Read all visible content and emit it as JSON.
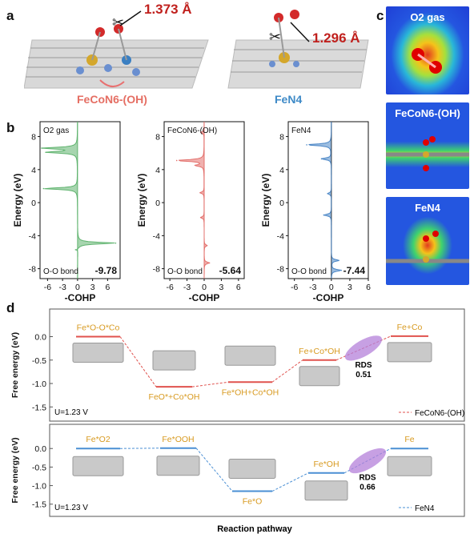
{
  "panels": {
    "a": "a",
    "b": "b",
    "c": "c",
    "d": "d"
  },
  "panel_a": {
    "bond_left": "1.373 Å",
    "bond_right": "1.296 Å",
    "name_left": "FeCoN6-(OH)",
    "name_right": "FeN4"
  },
  "panel_c": {
    "labels": [
      "O2 gas",
      "FeCoN6-(OH)",
      "FeN4"
    ]
  },
  "chart_data": [
    {
      "type": "line",
      "title": "O2 gas",
      "xlabel": "-COHP",
      "ylabel": "Energy (eV)",
      "xlim": [
        -7.5,
        8.5
      ],
      "ylim": [
        -9.2,
        9.8
      ],
      "xticks": [
        "-6",
        "-3",
        "0",
        "3",
        "6"
      ],
      "yticks": [
        "8",
        "4",
        "0",
        "-4",
        "-8"
      ],
      "bond_label": "O-O bond",
      "icohp": "-9.78",
      "color": "#5fb36e",
      "peaks": [
        {
          "energy": 6.6,
          "cohp": -7.0
        },
        {
          "energy": 6.1,
          "cohp": -6.2
        },
        {
          "energy": 1.7,
          "cohp": -6.8
        },
        {
          "energy": -4.9,
          "cohp": 7.6
        },
        {
          "energy": -5.7,
          "cohp": -0.4
        }
      ]
    },
    {
      "type": "line",
      "title": "FeCoN6-(OH)",
      "xlabel": "-COHP",
      "ylabel": "Energy (eV)",
      "xlim": [
        -7,
        7
      ],
      "ylim": [
        -9.2,
        9.8
      ],
      "xticks": [
        "-6",
        "-3",
        "0",
        "3",
        "6"
      ],
      "yticks": [
        "8",
        "4",
        "0",
        "-4",
        "-8"
      ],
      "bond_label": "O-O bond",
      "icohp": "-5.64",
      "color": "#e3706c",
      "peaks": [
        {
          "energy": 8.5,
          "cohp": -0.6
        },
        {
          "energy": 5.1,
          "cohp": -4.8
        },
        {
          "energy": 4.5,
          "cohp": -1.5
        },
        {
          "energy": 1.2,
          "cohp": -0.7
        },
        {
          "energy": -1.8,
          "cohp": -0.6
        },
        {
          "energy": -5.2,
          "cohp": 0.5
        },
        {
          "energy": -7.3,
          "cohp": 0.9
        }
      ]
    },
    {
      "type": "line",
      "title": "FeN4",
      "xlabel": "-COHP",
      "ylabel": "Energy (eV)",
      "xlim": [
        -7,
        6
      ],
      "ylim": [
        -9.2,
        9.8
      ],
      "xticks": [
        "-6",
        "-3",
        "0",
        "3",
        "6"
      ],
      "yticks": [
        "8",
        "4",
        "0",
        "-4",
        "-8"
      ],
      "bond_label": "O-O bond",
      "icohp": "-7.44",
      "color": "#4a86c6",
      "peaks": [
        {
          "energy": 7.0,
          "cohp": -4.0
        },
        {
          "energy": 5.3,
          "cohp": -1.6
        },
        {
          "energy": 1.1,
          "cohp": -0.6
        },
        {
          "energy": -1.5,
          "cohp": -1.2
        },
        {
          "energy": -7.0,
          "cohp": 1.2
        },
        {
          "energy": -8.2,
          "cohp": 1.6
        }
      ]
    },
    {
      "type": "line",
      "ylabel": "Free energy (eV)",
      "yticks": [
        "0.0",
        "-0.5",
        "-1.0",
        "-1.5"
      ],
      "ylim": [
        -1.7,
        0.35
      ],
      "condition": "U=1.23 V",
      "legend": "FeCoN6-(OH)",
      "color": "#e0524e",
      "steps": [
        {
          "label": "Fe*O-O*Co",
          "value": 0.0
        },
        {
          "label": "FeO*+Co*OH",
          "value": -1.07
        },
        {
          "label": "Fe*OH+Co*OH",
          "value": -0.97
        },
        {
          "label": "Fe+Co*OH",
          "value": -0.5
        },
        {
          "label": "Fe+Co",
          "value": 0.01
        }
      ],
      "rds_label": "RDS",
      "rds_value": "0.51"
    },
    {
      "type": "line",
      "ylabel": "Free energy (eV)",
      "yticks": [
        "0.0",
        "-0.5",
        "-1.0",
        "-1.5"
      ],
      "ylim": [
        -1.7,
        0.35
      ],
      "condition": "U=1.23 V",
      "legend": "FeN4",
      "color": "#4a8fd4",
      "steps": [
        {
          "label": "Fe*O2",
          "value": 0.0
        },
        {
          "label": "Fe*OOH",
          "value": 0.01
        },
        {
          "label": "Fe*O",
          "value": -1.15
        },
        {
          "label": "Fe*OH",
          "value": -0.66
        },
        {
          "label": "Fe",
          "value": 0.0
        }
      ],
      "rds_label": "RDS",
      "rds_value": "0.66"
    }
  ],
  "xaxis_d": "Reaction pathway"
}
